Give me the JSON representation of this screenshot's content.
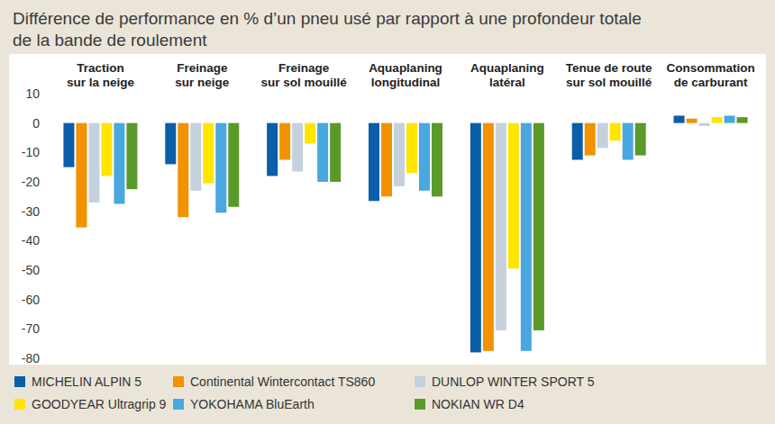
{
  "chart_data": {
    "type": "bar",
    "title": "Différence de performance en % d’un pneu usé par rapport à une profondeur totale\nde la bande de roulement",
    "categories": [
      "Traction\nsur la neige",
      "Freinage\nsur neige",
      "Freinage\nsur sol mouillé",
      "Aquaplaning\nlongitudinal",
      "Aquaplaning\nlatéral",
      "Tenue de route\nsur sol mouillé",
      "Consommation\nde carburant"
    ],
    "series": [
      {
        "name": "MICHELIN ALPIN 5",
        "color": "#0b5ea8",
        "values": [
          -15,
          -14,
          -18,
          -26.5,
          -78,
          -12.5,
          2.5
        ]
      },
      {
        "name": "Continental Wintercontact TS860",
        "color": "#f39200",
        "values": [
          -35.5,
          -32,
          -12.5,
          -25,
          -77.5,
          -11,
          1.5
        ]
      },
      {
        "name": "DUNLOP WINTER SPORT 5",
        "color": "#c5d1dc",
        "values": [
          -27,
          -23,
          -16.5,
          -21.5,
          -70.5,
          -8.5,
          -1
        ]
      },
      {
        "name": "GOODYEAR Ultragrip 9",
        "color": "#ffe500",
        "values": [
          -18,
          -20.5,
          -7,
          -17,
          -49.5,
          -6,
          2
        ]
      },
      {
        "name": "YOKOHAMA BluEarth",
        "color": "#4aa7df",
        "values": [
          -27.5,
          -30.5,
          -20,
          -23,
          -77.5,
          -12.5,
          2.5
        ]
      },
      {
        "name": "NOKIAN WR D4",
        "color": "#5a9a2a",
        "values": [
          -22.5,
          -28.5,
          -20,
          -25,
          -70.5,
          -11,
          2
        ]
      }
    ],
    "ylim": [
      -80,
      10
    ],
    "yticks": [
      10,
      0,
      -10,
      -20,
      -30,
      -40,
      -50,
      -60,
      -70,
      -80
    ],
    "grid": false,
    "legend": "bottom"
  }
}
